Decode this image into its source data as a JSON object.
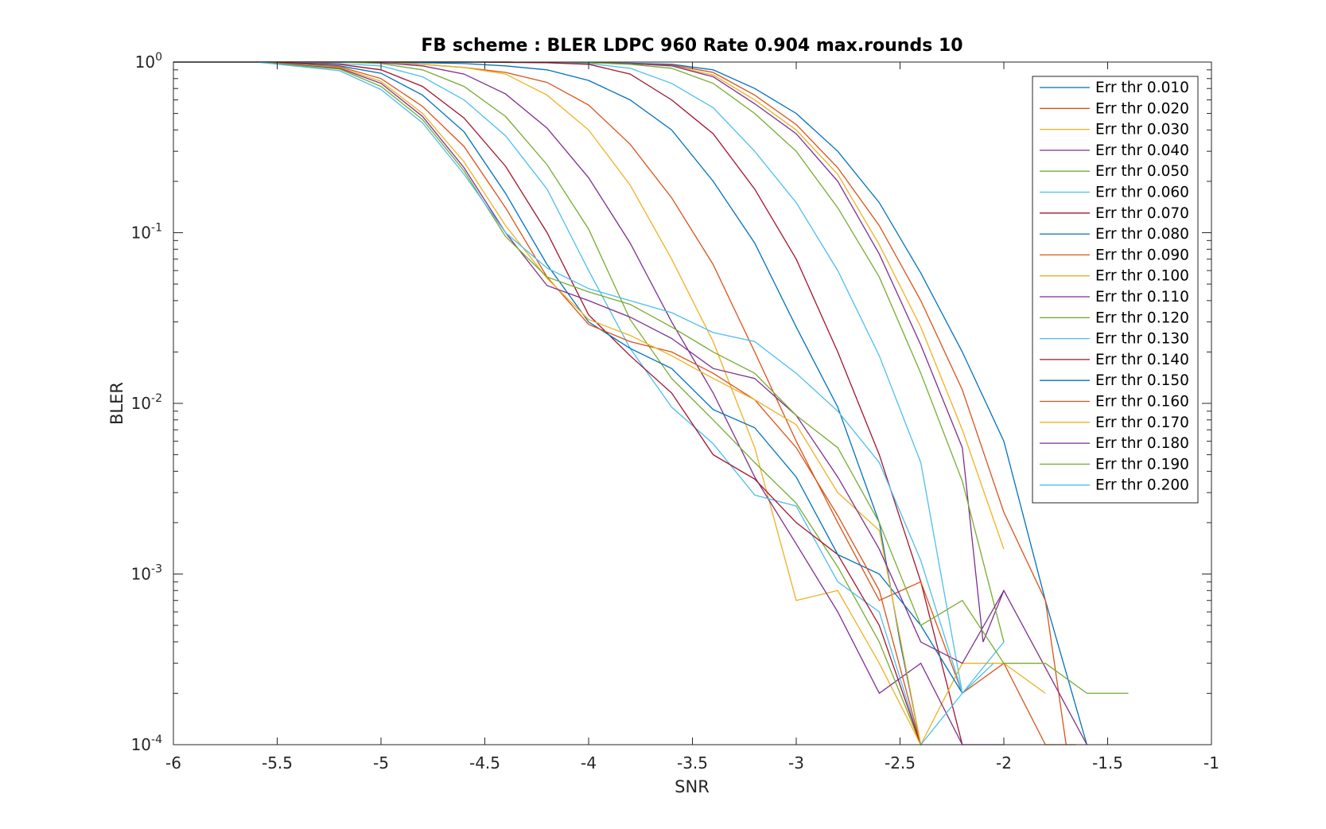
{
  "chart_data": {
    "type": "line",
    "title": "FB scheme : BLER LDPC 960 Rate 0.904 max.rounds 10",
    "xlabel": "SNR",
    "ylabel": "BLER",
    "xlim": [
      -6,
      -1
    ],
    "ylim": [
      0.0001,
      1
    ],
    "yscale": "log",
    "grid": false,
    "legend_position": "top-right",
    "x_ticks": [
      {
        "value": -6,
        "label": "-6"
      },
      {
        "value": -5.5,
        "label": "-5.5"
      },
      {
        "value": -5,
        "label": "-5"
      },
      {
        "value": -4.5,
        "label": "-4.5"
      },
      {
        "value": -4,
        "label": "-4"
      },
      {
        "value": -3.5,
        "label": "-3.5"
      },
      {
        "value": -3,
        "label": "-3"
      },
      {
        "value": -2.5,
        "label": "-2.5"
      },
      {
        "value": -2,
        "label": "-2"
      },
      {
        "value": -1.5,
        "label": "-1.5"
      },
      {
        "value": -1,
        "label": "-1"
      }
    ],
    "y_ticks": [
      {
        "value": 1,
        "base": "10",
        "exp": "0"
      },
      {
        "value": 0.1,
        "base": "10",
        "exp": "-1"
      },
      {
        "value": 0.01,
        "base": "10",
        "exp": "-2"
      },
      {
        "value": 0.001,
        "base": "10",
        "exp": "-3"
      },
      {
        "value": 0.0001,
        "base": "10",
        "exp": "-4"
      }
    ],
    "series": [
      {
        "name": "Err thr 0.010",
        "color": "#0072BD",
        "x": [
          -6,
          -5.6,
          -5.2,
          -5,
          -4.8,
          -4.6,
          -4.4,
          -4.2,
          -4,
          -3.8,
          -3.6,
          -3.4,
          -3.2,
          -3,
          -2.8,
          -2.6,
          -2.4,
          -2.2,
          -2,
          -1.8,
          -1.6
        ],
        "y": [
          1,
          1,
          1,
          1,
          1,
          1,
          1,
          0.995,
          0.99,
          0.985,
          0.97,
          0.9,
          0.7,
          0.5,
          0.3,
          0.15,
          0.058,
          0.02,
          0.006,
          0.0007,
          0.0001
        ]
      },
      {
        "name": "Err thr 0.020",
        "color": "#D95319",
        "x": [
          -6,
          -5.6,
          -5.2,
          -5,
          -4.8,
          -4.6,
          -4.4,
          -4.2,
          -4,
          -3.8,
          -3.6,
          -3.4,
          -3.2,
          -3,
          -2.8,
          -2.6,
          -2.4,
          -2.2,
          -2,
          -1.8,
          -1.7
        ],
        "y": [
          1,
          1,
          1,
          1,
          1,
          1,
          1,
          0.995,
          0.99,
          0.98,
          0.96,
          0.87,
          0.64,
          0.43,
          0.24,
          0.11,
          0.04,
          0.012,
          0.0023,
          0.0007,
          0.0001
        ]
      },
      {
        "name": "Err thr 0.030",
        "color": "#EDB120",
        "x": [
          -6,
          -5.6,
          -5.2,
          -5,
          -4.8,
          -4.6,
          -4.4,
          -4.2,
          -4,
          -3.8,
          -3.6,
          -3.4,
          -3.2,
          -3,
          -2.8,
          -2.6,
          -2.4,
          -2.2,
          -2
        ],
        "y": [
          1,
          1,
          1,
          1,
          1,
          1,
          1,
          0.995,
          0.99,
          0.98,
          0.95,
          0.84,
          0.6,
          0.4,
          0.22,
          0.085,
          0.028,
          0.007,
          0.0014
        ]
      },
      {
        "name": "Err thr 0.040",
        "color": "#7E2F8E",
        "x": [
          -6,
          -5.6,
          -5.2,
          -5,
          -4.8,
          -4.6,
          -4.4,
          -4.2,
          -4,
          -3.8,
          -3.6,
          -3.4,
          -3.2,
          -3,
          -2.8,
          -2.6,
          -2.4,
          -2.2,
          -2.1,
          -2,
          -1.6
        ],
        "y": [
          1,
          1,
          1,
          1,
          1,
          1,
          1,
          0.995,
          0.99,
          0.98,
          0.95,
          0.82,
          0.57,
          0.38,
          0.2,
          0.075,
          0.022,
          0.0055,
          0.0004,
          0.0008,
          0.0001
        ]
      },
      {
        "name": "Err thr 0.050",
        "color": "#77AC30",
        "x": [
          -6,
          -5.6,
          -5.2,
          -5,
          -4.8,
          -4.6,
          -4.4,
          -4.2,
          -4,
          -3.8,
          -3.6,
          -3.4,
          -3.2,
          -3,
          -2.8,
          -2.6,
          -2.4,
          -2.2,
          -2
        ],
        "y": [
          1,
          1,
          1,
          1,
          1,
          1,
          1,
          0.995,
          0.99,
          0.97,
          0.92,
          0.75,
          0.5,
          0.3,
          0.14,
          0.055,
          0.015,
          0.0035,
          0.0004
        ]
      },
      {
        "name": "Err thr 0.060",
        "color": "#4DBEEE",
        "x": [
          -6,
          -5.6,
          -5.2,
          -5,
          -4.8,
          -4.6,
          -4.4,
          -4.2,
          -4,
          -3.8,
          -3.6,
          -3.4,
          -3.2,
          -3,
          -2.8,
          -2.6,
          -2.4,
          -2.2,
          -2.05
        ],
        "y": [
          1,
          1,
          1,
          1,
          1,
          1,
          1,
          0.99,
          0.98,
          0.92,
          0.75,
          0.54,
          0.3,
          0.15,
          0.06,
          0.019,
          0.0045,
          0.0002,
          0.0003
        ]
      },
      {
        "name": "Err thr 0.070",
        "color": "#A2142F",
        "x": [
          -6,
          -5.6,
          -5.2,
          -5,
          -4.8,
          -4.6,
          -4.4,
          -4.2,
          -4,
          -3.8,
          -3.6,
          -3.4,
          -3.2,
          -3,
          -2.8,
          -2.6,
          -2.4,
          -2.2
        ],
        "y": [
          1,
          1,
          1,
          1,
          1,
          1,
          0.995,
          0.99,
          0.97,
          0.85,
          0.6,
          0.38,
          0.18,
          0.07,
          0.02,
          0.005,
          0.0009,
          0.0001
        ]
      },
      {
        "name": "Err thr 0.080",
        "color": "#0072BD",
        "x": [
          -6,
          -5.6,
          -5.2,
          -5,
          -4.8,
          -4.6,
          -4.4,
          -4.2,
          -4,
          -3.8,
          -3.6,
          -3.4,
          -3.2,
          -3,
          -2.8,
          -2.6,
          -2.5,
          -2.4
        ],
        "y": [
          1,
          1,
          1,
          0.995,
          0.99,
          0.98,
          0.95,
          0.9,
          0.78,
          0.6,
          0.4,
          0.2,
          0.087,
          0.028,
          0.0095,
          0.002,
          0.0004,
          0.0001
        ]
      },
      {
        "name": "Err thr 0.090",
        "color": "#D95319",
        "x": [
          -6,
          -5.6,
          -5.2,
          -5,
          -4.8,
          -4.6,
          -4.4,
          -4.2,
          -4,
          -3.8,
          -3.6,
          -3.4,
          -3.2,
          -3,
          -2.8,
          -2.6,
          -2.4,
          -2.2,
          -2,
          -1.8,
          -1.65
        ],
        "y": [
          1,
          1,
          1,
          0.99,
          0.97,
          0.93,
          0.87,
          0.76,
          0.56,
          0.33,
          0.16,
          0.065,
          0.02,
          0.006,
          0.002,
          0.0007,
          0.0009,
          0.0002,
          0.0003,
          0.0001,
          0.0001
        ]
      },
      {
        "name": "Err thr 0.100",
        "color": "#EDB120",
        "x": [
          -6,
          -5.6,
          -5.2,
          -5,
          -4.8,
          -4.6,
          -4.4,
          -4.2,
          -4,
          -3.8,
          -3.6,
          -3.4,
          -3.2,
          -3,
          -2.8,
          -2.6,
          -2.4,
          -2.2,
          -2,
          -1.8
        ],
        "y": [
          1,
          1,
          1,
          0.99,
          0.97,
          0.93,
          0.85,
          0.64,
          0.4,
          0.19,
          0.07,
          0.023,
          0.0055,
          0.0007,
          0.0008,
          0.0003,
          0.0001,
          0.0003,
          0.0003,
          0.0002
        ]
      },
      {
        "name": "Err thr 0.110",
        "color": "#7E2F8E",
        "x": [
          -6,
          -5.6,
          -5.2,
          -5,
          -4.8,
          -4.6,
          -4.4,
          -4.2,
          -4,
          -3.8,
          -3.6,
          -3.4,
          -3.2,
          -3,
          -2.8,
          -2.6,
          -2.4,
          -2.2,
          -2
        ],
        "y": [
          1,
          1,
          1,
          0.99,
          0.95,
          0.85,
          0.65,
          0.41,
          0.21,
          0.087,
          0.03,
          0.0115,
          0.0037,
          0.0015,
          0.0006,
          0.0002,
          0.0003,
          0.0001,
          0.0001
        ]
      },
      {
        "name": "Err thr 0.120",
        "color": "#77AC30",
        "x": [
          -6,
          -5.6,
          -5.2,
          -5,
          -4.8,
          -4.6,
          -4.4,
          -4.2,
          -4,
          -3.8,
          -3.6,
          -3.4,
          -3.2,
          -3,
          -2.8,
          -2.6,
          -2.4
        ],
        "y": [
          1,
          1,
          1,
          0.98,
          0.9,
          0.72,
          0.48,
          0.25,
          0.105,
          0.031,
          0.014,
          0.008,
          0.0045,
          0.0026,
          0.0011,
          0.0004,
          0.0001
        ]
      },
      {
        "name": "Err thr 0.130",
        "color": "#4DBEEE",
        "x": [
          -6,
          -5.6,
          -5.2,
          -5,
          -4.8,
          -4.6,
          -4.4,
          -4.2,
          -4,
          -3.8,
          -3.6,
          -3.4,
          -3.2,
          -3,
          -2.8,
          -2.6,
          -2.4,
          -2.2,
          -2
        ],
        "y": [
          1,
          1,
          0.98,
          0.95,
          0.82,
          0.6,
          0.37,
          0.18,
          0.06,
          0.021,
          0.0095,
          0.0058,
          0.0029,
          0.0025,
          0.0009,
          0.0006,
          0.0001,
          0.0002,
          0.0004
        ]
      },
      {
        "name": "Err thr 0.140",
        "color": "#A2142F",
        "x": [
          -6,
          -5.6,
          -5.2,
          -5,
          -4.8,
          -4.6,
          -4.4,
          -4.2,
          -4,
          -3.8,
          -3.6,
          -3.4,
          -3.2,
          -3,
          -2.8,
          -2.6,
          -2.4
        ],
        "y": [
          1,
          1,
          0.97,
          0.9,
          0.72,
          0.47,
          0.245,
          0.1,
          0.033,
          0.019,
          0.0115,
          0.005,
          0.0036,
          0.002,
          0.0013,
          0.0005,
          0.0001
        ]
      },
      {
        "name": "Err thr 0.150",
        "color": "#0072BD",
        "x": [
          -6,
          -5.6,
          -5.2,
          -5,
          -4.8,
          -4.6,
          -4.4,
          -4.2,
          -4,
          -3.8,
          -3.6,
          -3.4,
          -3.2,
          -3,
          -2.8,
          -2.6,
          -2.4,
          -2.2
        ],
        "y": [
          1,
          1,
          0.95,
          0.86,
          0.64,
          0.39,
          0.17,
          0.065,
          0.03,
          0.021,
          0.016,
          0.0092,
          0.0072,
          0.0037,
          0.0013,
          0.001,
          0.0005,
          0.0002
        ]
      },
      {
        "name": "Err thr 0.160",
        "color": "#D95319",
        "x": [
          -6,
          -5.6,
          -5.2,
          -5,
          -4.8,
          -4.6,
          -4.4,
          -4.2,
          -4,
          -3.8,
          -3.6,
          -3.4,
          -3.2,
          -3,
          -2.8,
          -2.6,
          -2.4
        ],
        "y": [
          1,
          1,
          0.94,
          0.8,
          0.55,
          0.32,
          0.14,
          0.055,
          0.029,
          0.023,
          0.02,
          0.015,
          0.0105,
          0.0055,
          0.0022,
          0.0008,
          0.0001
        ]
      },
      {
        "name": "Err thr 0.170",
        "color": "#EDB120",
        "x": [
          -6,
          -5.6,
          -5.2,
          -5,
          -4.8,
          -4.6,
          -4.4,
          -4.2,
          -4,
          -3.8,
          -3.6,
          -3.4,
          -3.2,
          -3,
          -2.8,
          -2.6,
          -2.4
        ],
        "y": [
          1,
          1,
          0.93,
          0.77,
          0.5,
          0.26,
          0.11,
          0.054,
          0.031,
          0.025,
          0.019,
          0.014,
          0.0105,
          0.0075,
          0.003,
          0.0018,
          0.0001
        ]
      },
      {
        "name": "Err thr 0.180",
        "color": "#7E2F8E",
        "x": [
          -6,
          -5.6,
          -5.2,
          -5,
          -4.8,
          -4.6,
          -4.4,
          -4.2,
          -4,
          -3.8,
          -3.6,
          -3.4,
          -3.2,
          -3,
          -2.8,
          -2.6,
          -2.4,
          -2.2,
          -2
        ],
        "y": [
          1,
          1,
          0.92,
          0.75,
          0.48,
          0.24,
          0.1,
          0.049,
          0.04,
          0.032,
          0.024,
          0.016,
          0.014,
          0.0085,
          0.0037,
          0.0014,
          0.0004,
          0.0003,
          0.0008
        ]
      },
      {
        "name": "Err thr 0.190",
        "color": "#77AC30",
        "x": [
          -6,
          -5.6,
          -5.2,
          -5,
          -4.8,
          -4.6,
          -4.4,
          -4.2,
          -4,
          -3.8,
          -3.6,
          -3.4,
          -3.2,
          -3,
          -2.8,
          -2.6,
          -2.4,
          -2.2,
          -2,
          -1.8,
          -1.6,
          -1.4
        ],
        "y": [
          1,
          1,
          0.91,
          0.72,
          0.46,
          0.23,
          0.095,
          0.055,
          0.045,
          0.038,
          0.028,
          0.02,
          0.015,
          0.0085,
          0.0055,
          0.002,
          0.0005,
          0.0007,
          0.0003,
          0.0003,
          0.0002,
          0.0002
        ]
      },
      {
        "name": "Err thr 0.200",
        "color": "#4DBEEE",
        "x": [
          -6,
          -5.6,
          -5.2,
          -5,
          -4.8,
          -4.6,
          -4.4,
          -4.2,
          -4,
          -3.8,
          -3.6,
          -3.4,
          -3.2,
          -3,
          -2.8,
          -2.6,
          -2.4,
          -2.2
        ],
        "y": [
          1,
          1,
          0.89,
          0.69,
          0.44,
          0.22,
          0.1,
          0.062,
          0.047,
          0.04,
          0.034,
          0.026,
          0.023,
          0.015,
          0.009,
          0.0045,
          0.0012,
          0.0002
        ]
      }
    ]
  }
}
